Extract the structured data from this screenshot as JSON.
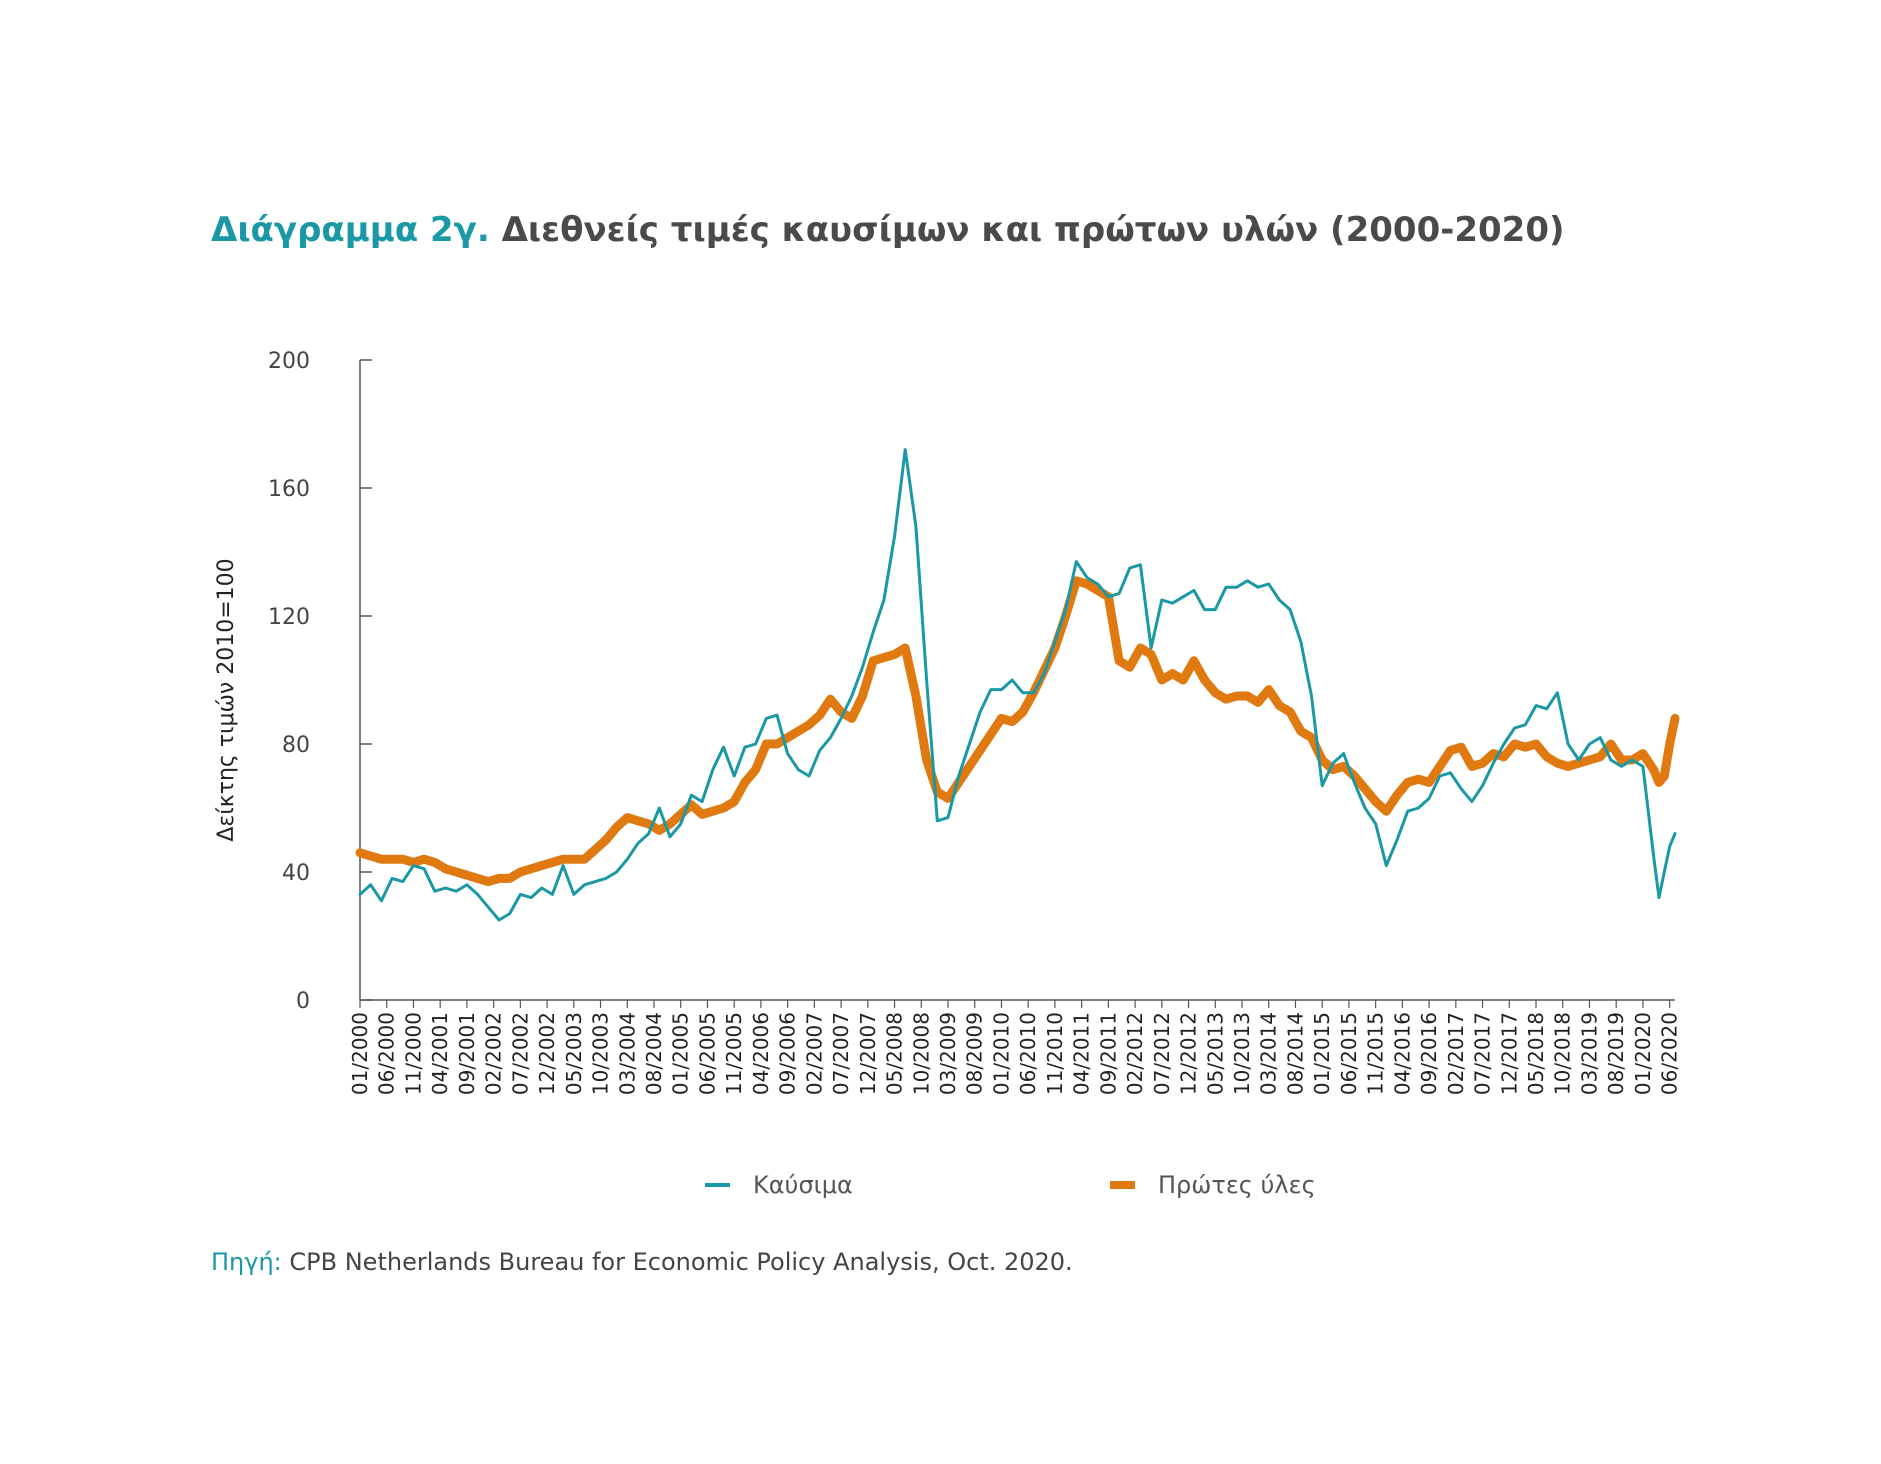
{
  "title": {
    "prefix": "Διάγραμμα 2γ.",
    "text": "Διεθνείς τιμές καυσίμων και πρώτων υλών (2000-2020)"
  },
  "source": {
    "label": "Πηγή:",
    "text": "CPB Netherlands Bureau for Economic Policy Analysis, Oct. 2020."
  },
  "chart_data": {
    "type": "line",
    "ylabel": "Δείκτης τιμών 2010=100",
    "ylim": [
      0,
      200
    ],
    "yticks": [
      0,
      40,
      80,
      120,
      160,
      200
    ],
    "grid": false,
    "legend_position": "bottom",
    "x_tick_labels": [
      "01/2000",
      "06/2000",
      "11/2000",
      "04/2001",
      "09/2001",
      "02/2002",
      "07/2002",
      "12/2002",
      "05/2003",
      "10/2003",
      "03/2004",
      "08/2004",
      "01/2005",
      "06/2005",
      "11/2005",
      "04/2006",
      "09/2006",
      "02/2007",
      "07/2007",
      "12/2007",
      "05/2008",
      "10/2008",
      "03/2009",
      "08/2009",
      "01/2010",
      "06/2010",
      "11/2010",
      "04/2011",
      "09/2011",
      "02/2012",
      "07/2012",
      "12/2012",
      "05/2013",
      "10/2013",
      "03/2014",
      "08/2014",
      "01/2015",
      "06/2015",
      "11/2015",
      "04/2016",
      "09/2016",
      "02/2017",
      "07/2017",
      "12/2017",
      "05/2018",
      "10/2018",
      "03/2019",
      "08/2019",
      "01/2020",
      "06/2020"
    ],
    "x_start": "01/2000",
    "x_end": "07/2020",
    "series": [
      {
        "name": "Καύσιμα",
        "color": "#1a98a6",
        "points": [
          [
            "01/2000",
            33
          ],
          [
            "03/2000",
            36
          ],
          [
            "05/2000",
            31
          ],
          [
            "07/2000",
            38
          ],
          [
            "09/2000",
            37
          ],
          [
            "11/2000",
            42
          ],
          [
            "01/2001",
            41
          ],
          [
            "03/2001",
            34
          ],
          [
            "05/2001",
            35
          ],
          [
            "07/2001",
            34
          ],
          [
            "09/2001",
            36
          ],
          [
            "11/2001",
            33
          ],
          [
            "01/2002",
            29
          ],
          [
            "03/2002",
            25
          ],
          [
            "05/2002",
            27
          ],
          [
            "07/2002",
            33
          ],
          [
            "09/2002",
            32
          ],
          [
            "11/2002",
            35
          ],
          [
            "01/2003",
            33
          ],
          [
            "03/2003",
            42
          ],
          [
            "05/2003",
            33
          ],
          [
            "07/2003",
            36
          ],
          [
            "09/2003",
            37
          ],
          [
            "11/2003",
            38
          ],
          [
            "01/2004",
            40
          ],
          [
            "03/2004",
            44
          ],
          [
            "05/2004",
            49
          ],
          [
            "07/2004",
            52
          ],
          [
            "09/2004",
            60
          ],
          [
            "11/2004",
            51
          ],
          [
            "01/2005",
            55
          ],
          [
            "03/2005",
            64
          ],
          [
            "05/2005",
            62
          ],
          [
            "07/2005",
            72
          ],
          [
            "09/2005",
            79
          ],
          [
            "11/2005",
            70
          ],
          [
            "01/2006",
            79
          ],
          [
            "03/2006",
            80
          ],
          [
            "05/2006",
            88
          ],
          [
            "07/2006",
            89
          ],
          [
            "09/2006",
            77
          ],
          [
            "11/2006",
            72
          ],
          [
            "01/2007",
            70
          ],
          [
            "03/2007",
            78
          ],
          [
            "05/2007",
            82
          ],
          [
            "07/2007",
            88
          ],
          [
            "09/2007",
            95
          ],
          [
            "11/2007",
            104
          ],
          [
            "01/2008",
            115
          ],
          [
            "03/2008",
            125
          ],
          [
            "05/2008",
            145
          ],
          [
            "07/2008",
            172
          ],
          [
            "09/2008",
            148
          ],
          [
            "11/2008",
            100
          ],
          [
            "01/2009",
            56
          ],
          [
            "03/2009",
            57
          ],
          [
            "05/2009",
            70
          ],
          [
            "07/2009",
            80
          ],
          [
            "09/2009",
            90
          ],
          [
            "11/2009",
            97
          ],
          [
            "01/2010",
            97
          ],
          [
            "03/2010",
            100
          ],
          [
            "05/2010",
            96
          ],
          [
            "07/2010",
            96
          ],
          [
            "09/2010",
            102
          ],
          [
            "11/2010",
            112
          ],
          [
            "01/2011",
            122
          ],
          [
            "03/2011",
            137
          ],
          [
            "05/2011",
            132
          ],
          [
            "07/2011",
            130
          ],
          [
            "09/2011",
            126
          ],
          [
            "11/2011",
            127
          ],
          [
            "01/2012",
            135
          ],
          [
            "03/2012",
            136
          ],
          [
            "05/2012",
            110
          ],
          [
            "07/2012",
            125
          ],
          [
            "09/2012",
            124
          ],
          [
            "11/2012",
            126
          ],
          [
            "01/2013",
            128
          ],
          [
            "03/2013",
            122
          ],
          [
            "05/2013",
            122
          ],
          [
            "07/2013",
            129
          ],
          [
            "09/2013",
            129
          ],
          [
            "11/2013",
            131
          ],
          [
            "01/2014",
            129
          ],
          [
            "03/2014",
            130
          ],
          [
            "05/2014",
            125
          ],
          [
            "07/2014",
            122
          ],
          [
            "09/2014",
            112
          ],
          [
            "11/2014",
            95
          ],
          [
            "01/2015",
            67
          ],
          [
            "03/2015",
            74
          ],
          [
            "05/2015",
            77
          ],
          [
            "07/2015",
            68
          ],
          [
            "09/2015",
            60
          ],
          [
            "11/2015",
            55
          ],
          [
            "01/2016",
            42
          ],
          [
            "03/2016",
            50
          ],
          [
            "05/2016",
            59
          ],
          [
            "07/2016",
            60
          ],
          [
            "09/2016",
            63
          ],
          [
            "11/2016",
            70
          ],
          [
            "01/2017",
            71
          ],
          [
            "03/2017",
            66
          ],
          [
            "05/2017",
            62
          ],
          [
            "07/2017",
            67
          ],
          [
            "09/2017",
            74
          ],
          [
            "11/2017",
            80
          ],
          [
            "01/2018",
            85
          ],
          [
            "03/2018",
            86
          ],
          [
            "05/2018",
            92
          ],
          [
            "07/2018",
            91
          ],
          [
            "09/2018",
            96
          ],
          [
            "11/2018",
            80
          ],
          [
            "01/2019",
            75
          ],
          [
            "03/2019",
            80
          ],
          [
            "05/2019",
            82
          ],
          [
            "07/2019",
            75
          ],
          [
            "09/2019",
            73
          ],
          [
            "11/2019",
            75
          ],
          [
            "01/2020",
            73
          ],
          [
            "03/2020",
            45
          ],
          [
            "04/2020",
            32
          ],
          [
            "05/2020",
            40
          ],
          [
            "06/2020",
            48
          ],
          [
            "07/2020",
            52
          ]
        ]
      },
      {
        "name": "Πρώτες ύλες",
        "color": "#e07a10",
        "points": [
          [
            "01/2000",
            46
          ],
          [
            "03/2000",
            45
          ],
          [
            "05/2000",
            44
          ],
          [
            "07/2000",
            44
          ],
          [
            "09/2000",
            44
          ],
          [
            "11/2000",
            43
          ],
          [
            "01/2001",
            44
          ],
          [
            "03/2001",
            43
          ],
          [
            "05/2001",
            41
          ],
          [
            "07/2001",
            40
          ],
          [
            "09/2001",
            39
          ],
          [
            "11/2001",
            38
          ],
          [
            "01/2002",
            37
          ],
          [
            "03/2002",
            38
          ],
          [
            "05/2002",
            38
          ],
          [
            "07/2002",
            40
          ],
          [
            "09/2002",
            41
          ],
          [
            "11/2002",
            42
          ],
          [
            "01/2003",
            43
          ],
          [
            "03/2003",
            44
          ],
          [
            "05/2003",
            44
          ],
          [
            "07/2003",
            44
          ],
          [
            "09/2003",
            47
          ],
          [
            "11/2003",
            50
          ],
          [
            "01/2004",
            54
          ],
          [
            "03/2004",
            57
          ],
          [
            "05/2004",
            56
          ],
          [
            "07/2004",
            55
          ],
          [
            "09/2004",
            53
          ],
          [
            "11/2004",
            55
          ],
          [
            "01/2005",
            58
          ],
          [
            "03/2005",
            61
          ],
          [
            "05/2005",
            58
          ],
          [
            "07/2005",
            59
          ],
          [
            "09/2005",
            60
          ],
          [
            "11/2005",
            62
          ],
          [
            "01/2006",
            68
          ],
          [
            "03/2006",
            72
          ],
          [
            "05/2006",
            80
          ],
          [
            "07/2006",
            80
          ],
          [
            "09/2006",
            82
          ],
          [
            "11/2006",
            84
          ],
          [
            "01/2007",
            86
          ],
          [
            "03/2007",
            89
          ],
          [
            "05/2007",
            94
          ],
          [
            "07/2007",
            90
          ],
          [
            "09/2007",
            88
          ],
          [
            "11/2007",
            95
          ],
          [
            "01/2008",
            106
          ],
          [
            "03/2008",
            107
          ],
          [
            "05/2008",
            108
          ],
          [
            "07/2008",
            110
          ],
          [
            "09/2008",
            95
          ],
          [
            "11/2008",
            75
          ],
          [
            "01/2009",
            65
          ],
          [
            "03/2009",
            63
          ],
          [
            "05/2009",
            68
          ],
          [
            "07/2009",
            73
          ],
          [
            "09/2009",
            78
          ],
          [
            "11/2009",
            83
          ],
          [
            "01/2010",
            88
          ],
          [
            "03/2010",
            87
          ],
          [
            "05/2010",
            90
          ],
          [
            "07/2010",
            96
          ],
          [
            "09/2010",
            103
          ],
          [
            "11/2010",
            110
          ],
          [
            "01/2011",
            120
          ],
          [
            "03/2011",
            131
          ],
          [
            "05/2011",
            130
          ],
          [
            "07/2011",
            128
          ],
          [
            "09/2011",
            126
          ],
          [
            "11/2011",
            106
          ],
          [
            "01/2012",
            104
          ],
          [
            "03/2012",
            110
          ],
          [
            "05/2012",
            108
          ],
          [
            "07/2012",
            100
          ],
          [
            "09/2012",
            102
          ],
          [
            "11/2012",
            100
          ],
          [
            "01/2013",
            106
          ],
          [
            "03/2013",
            100
          ],
          [
            "05/2013",
            96
          ],
          [
            "07/2013",
            94
          ],
          [
            "09/2013",
            95
          ],
          [
            "11/2013",
            95
          ],
          [
            "01/2014",
            93
          ],
          [
            "03/2014",
            97
          ],
          [
            "05/2014",
            92
          ],
          [
            "07/2014",
            90
          ],
          [
            "09/2014",
            84
          ],
          [
            "11/2014",
            82
          ],
          [
            "01/2015",
            75
          ],
          [
            "03/2015",
            72
          ],
          [
            "05/2015",
            73
          ],
          [
            "07/2015",
            70
          ],
          [
            "09/2015",
            66
          ],
          [
            "11/2015",
            62
          ],
          [
            "01/2016",
            59
          ],
          [
            "03/2016",
            64
          ],
          [
            "05/2016",
            68
          ],
          [
            "07/2016",
            69
          ],
          [
            "09/2016",
            68
          ],
          [
            "11/2016",
            73
          ],
          [
            "01/2017",
            78
          ],
          [
            "03/2017",
            79
          ],
          [
            "05/2017",
            73
          ],
          [
            "07/2017",
            74
          ],
          [
            "09/2017",
            77
          ],
          [
            "11/2017",
            76
          ],
          [
            "01/2018",
            80
          ],
          [
            "03/2018",
            79
          ],
          [
            "05/2018",
            80
          ],
          [
            "07/2018",
            76
          ],
          [
            "09/2018",
            74
          ],
          [
            "11/2018",
            73
          ],
          [
            "01/2019",
            74
          ],
          [
            "03/2019",
            75
          ],
          [
            "05/2019",
            76
          ],
          [
            "07/2019",
            80
          ],
          [
            "09/2019",
            75
          ],
          [
            "11/2019",
            75
          ],
          [
            "01/2020",
            77
          ],
          [
            "03/2020",
            72
          ],
          [
            "04/2020",
            68
          ],
          [
            "05/2020",
            70
          ],
          [
            "06/2020",
            80
          ],
          [
            "07/2020",
            88
          ]
        ]
      }
    ]
  }
}
